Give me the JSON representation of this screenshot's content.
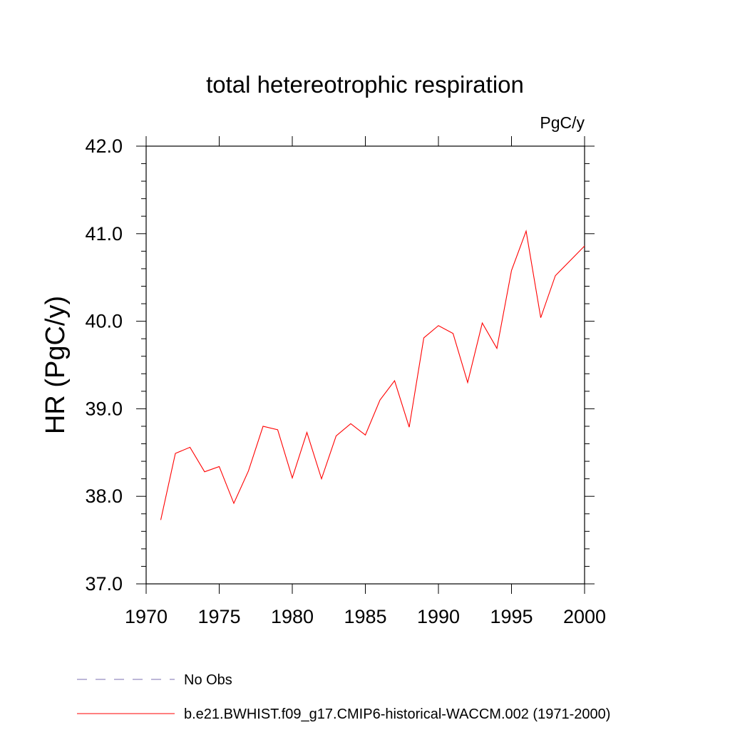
{
  "chart_data": {
    "type": "line",
    "title": "total hetereotrophic respiration",
    "units": "PgC/y",
    "ylabel": "HR  (PgC/y)",
    "xlabel": "",
    "xlim": [
      1970,
      2000
    ],
    "ylim": [
      37.0,
      42.0
    ],
    "x_ticks": [
      1970,
      1975,
      1980,
      1985,
      1990,
      1995,
      2000
    ],
    "x_tick_labels": [
      "1970",
      "1975",
      "1980",
      "1985",
      "1990",
      "1995",
      "2000"
    ],
    "y_ticks": [
      37.0,
      38.0,
      39.0,
      40.0,
      41.0,
      42.0
    ],
    "y_tick_labels": [
      "37.0",
      "38.0",
      "39.0",
      "40.0",
      "41.0",
      "42.0"
    ],
    "grid": false,
    "legend_position": "bottom",
    "legend": [
      {
        "name": "No Obs",
        "color": "#7b6fb0",
        "style": "dashed"
      },
      {
        "name": "b.e21.BWHIST.f09_g17.CMIP6-historical-WACCM.002 (1971-2000)",
        "color": "#ff0000",
        "style": "solid"
      }
    ],
    "series": [
      {
        "color": "#ff0000",
        "x": [
          1971,
          1972,
          1973,
          1974,
          1975,
          1976,
          1977,
          1978,
          1979,
          1980,
          1981,
          1982,
          1983,
          1984,
          1985,
          1986,
          1987,
          1988,
          1989,
          1990,
          1991,
          1992,
          1993,
          1994,
          1995,
          1996,
          1997,
          1998,
          1999,
          2000
        ],
        "values": [
          37.73,
          38.49,
          38.56,
          38.28,
          38.34,
          37.92,
          38.29,
          38.8,
          38.76,
          38.21,
          38.73,
          38.2,
          38.69,
          38.83,
          38.7,
          39.1,
          39.32,
          38.79,
          39.81,
          39.95,
          39.86,
          39.3,
          39.98,
          39.69,
          40.58,
          41.03,
          40.04,
          40.52,
          40.69,
          40.86
        ]
      }
    ]
  }
}
